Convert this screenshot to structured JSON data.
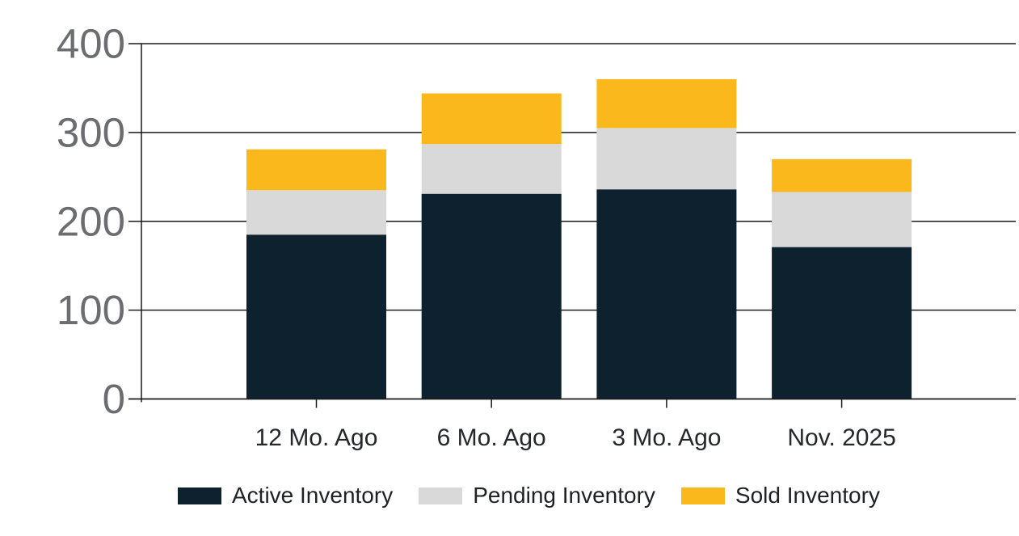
{
  "chart_data": {
    "type": "bar",
    "stacked": true,
    "title": "",
    "categories": [
      "12 Mo. Ago",
      "6 Mo. Ago",
      "3 Mo. Ago",
      "Nov. 2025"
    ],
    "series": [
      {
        "name": "Active Inventory",
        "color": "#0d222e",
        "values": [
          185,
          231,
          236,
          171
        ]
      },
      {
        "name": "Pending Inventory",
        "color": "#d9d9d9",
        "values": [
          50,
          56,
          69,
          62
        ]
      },
      {
        "name": "Sold Inventory",
        "color": "#fbb81c",
        "values": [
          46,
          57,
          55,
          37
        ]
      }
    ],
    "totals": [
      281,
      344,
      360,
      270
    ],
    "xlabel": "",
    "ylabel": "",
    "ylim": [
      0,
      400
    ],
    "yticks": [
      0,
      100,
      200,
      300,
      400
    ],
    "grid": true,
    "legend_position": "bottom",
    "colors": {
      "ytick_label": "#6b6d70",
      "xtick_label": "#24272b",
      "axis_line": "#1a1a1a",
      "background": "#ffffff"
    }
  }
}
